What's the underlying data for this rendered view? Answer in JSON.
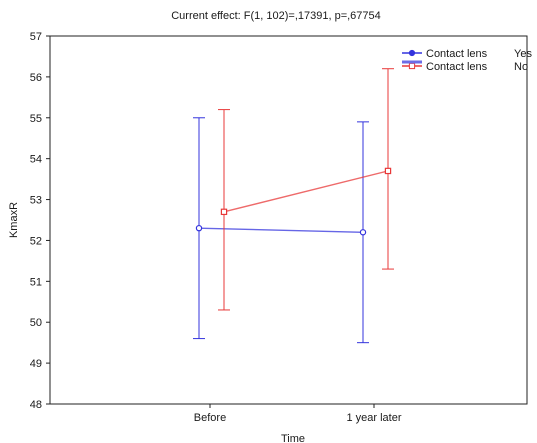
{
  "chart_data": {
    "type": "line",
    "title": "Current effect: F(1, 102)=,17391, p=,67754",
    "xlabel": "Time",
    "ylabel": "KmaxR",
    "categories": [
      "Before",
      "1 year later"
    ],
    "ylim": [
      48,
      57
    ],
    "yticks": [
      "48",
      "49",
      "50",
      "51",
      "52",
      "53",
      "54",
      "55",
      "56",
      "57"
    ],
    "legend_position": "top-right",
    "legend_factor": "Contact lens",
    "series": [
      {
        "name": "Yes",
        "color": "#3333dd",
        "marker": "circle",
        "values": [
          52.3,
          52.2
        ],
        "lower": [
          49.6,
          49.5
        ],
        "upper": [
          55.0,
          54.9
        ]
      },
      {
        "name": "No",
        "color": "#e83838",
        "marker": "square",
        "values": [
          52.7,
          53.7
        ],
        "lower": [
          50.3,
          51.3
        ],
        "upper": [
          55.2,
          56.2
        ]
      }
    ]
  }
}
